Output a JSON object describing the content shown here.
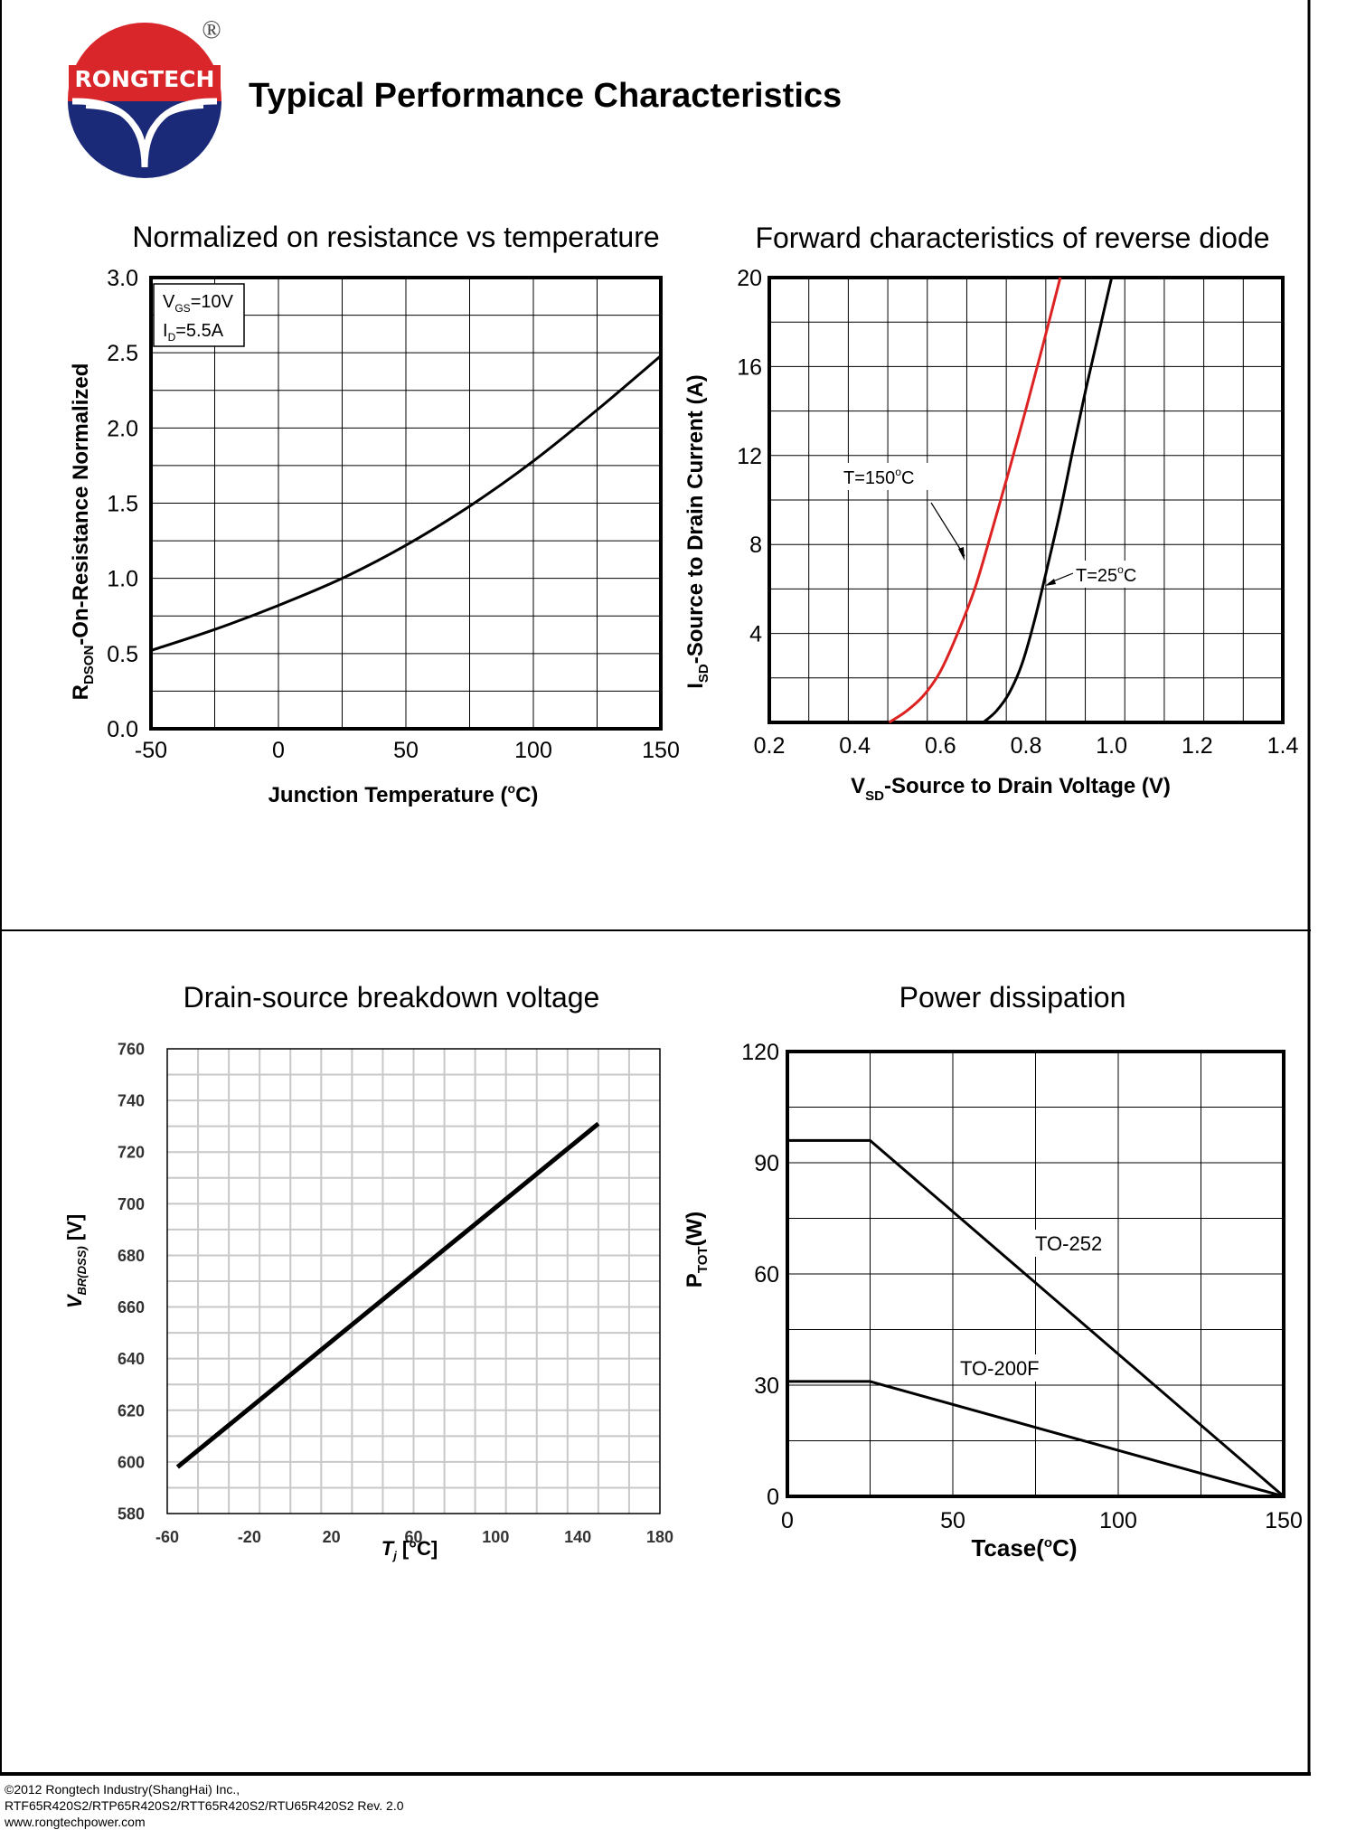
{
  "header": {
    "brand": "RONGTECH",
    "registered": "®",
    "title": "Typical Performance Characteristics"
  },
  "colors": {
    "red": "#dd2222",
    "navy": "#1b2a78",
    "grid": "#000000",
    "lightgrid": "#c8c8c8"
  },
  "chart_data": [
    {
      "id": "rdson",
      "type": "line",
      "title": "Normalized on resistance vs temperature",
      "xlabel": "Junction Temperature (°C)",
      "ylabel": "R_DSON-On-Resistance Normalized",
      "xlim": [
        -50,
        150
      ],
      "ylim": [
        0.0,
        3.0
      ],
      "xticks": [
        "-50",
        "0",
        "50",
        "100",
        "150"
      ],
      "yticks": [
        "0.0",
        "0.5",
        "1.0",
        "1.5",
        "2.0",
        "2.5",
        "3.0"
      ],
      "annotation": [
        "V_GS=10V",
        "I_D=5.5A"
      ],
      "series": [
        {
          "name": "RDSON",
          "color": "#000000",
          "x": [
            -50,
            -25,
            0,
            25,
            50,
            75,
            100,
            125,
            150
          ],
          "y": [
            0.52,
            0.66,
            0.82,
            1.0,
            1.22,
            1.48,
            1.78,
            2.12,
            2.48
          ]
        }
      ]
    },
    {
      "id": "diode",
      "type": "line",
      "title": "Forward characteristics of reverse diode",
      "xlabel": "V_SD-Source to Drain Voltage (V)",
      "ylabel": "I_SD-Source to Drain Current (A)",
      "xlim": [
        0.2,
        1.4
      ],
      "ylim": [
        0,
        20
      ],
      "xticks": [
        "0.2",
        "0.4",
        "0.6",
        "0.8",
        "1.0",
        "1.2",
        "1.4"
      ],
      "yticks": [
        "4",
        "8",
        "12",
        "16",
        "20"
      ],
      "series": [
        {
          "name": "T=150°C",
          "label": "T=150°C",
          "color": "#dd2222",
          "x": [
            0.48,
            0.52,
            0.56,
            0.6,
            0.64,
            0.68,
            0.72,
            0.76,
            0.8,
            0.84,
            0.88
          ],
          "y": [
            0,
            0.5,
            1.2,
            2.3,
            4.0,
            6.0,
            8.6,
            11.3,
            14.1,
            17.0,
            20.0
          ]
        },
        {
          "name": "T=25°C",
          "label": "T=25°C",
          "color": "#000000",
          "x": [
            0.7,
            0.73,
            0.76,
            0.79,
            0.82,
            0.85,
            0.88,
            0.91,
            0.94,
            0.97,
            1.0
          ],
          "y": [
            0,
            0.5,
            1.3,
            2.6,
            4.6,
            7.0,
            9.5,
            12.3,
            15.0,
            17.5,
            20.0
          ]
        }
      ]
    },
    {
      "id": "bvdss",
      "type": "line",
      "title": "Drain-source breakdown voltage",
      "xlabel": "T_j [°C]",
      "ylabel": "V_BR(DSS) [V]",
      "xlim": [
        -60,
        180
      ],
      "ylim": [
        580,
        760
      ],
      "xticks": [
        "-60",
        "-20",
        "20",
        "60",
        "100",
        "140",
        "180"
      ],
      "yticks": [
        "580",
        "600",
        "620",
        "640",
        "660",
        "680",
        "700",
        "720",
        "740",
        "760"
      ],
      "series": [
        {
          "name": "VBR(DSS)",
          "color": "#000000",
          "x": [
            -55,
            150
          ],
          "y": [
            598,
            731
          ]
        }
      ]
    },
    {
      "id": "ptot",
      "type": "line",
      "title": "Power dissipation",
      "xlabel": "Tcase(°C)",
      "ylabel": "P_TOT(W)",
      "xlim": [
        0,
        150
      ],
      "ylim": [
        0,
        120
      ],
      "xticks": [
        "0",
        "50",
        "100",
        "150"
      ],
      "yticks": [
        "0",
        "30",
        "60",
        "90",
        "120"
      ],
      "series": [
        {
          "name": "TO-252",
          "label": "TO-252",
          "color": "#000000",
          "x": [
            0,
            25,
            150
          ],
          "y": [
            96,
            96,
            0
          ]
        },
        {
          "name": "TO-200F",
          "label": "TO-200F",
          "color": "#000000",
          "x": [
            0,
            25,
            150
          ],
          "y": [
            31,
            31,
            0
          ]
        }
      ]
    }
  ],
  "footer": {
    "line1": "©2012 Rongtech Industry(ShangHai) Inc.,",
    "line2": "RTF65R420S2/RTP65R420S2/RTT65R420S2/RTU65R420S2 Rev. 2.0",
    "line3": "www.rongtechpower.com"
  }
}
